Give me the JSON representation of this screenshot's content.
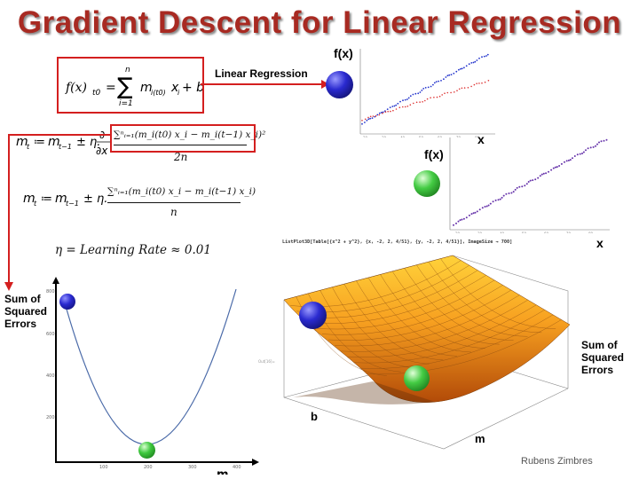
{
  "title": "Gradient Descent for Linear Regression",
  "model_formula": {
    "lhs": "f(x)",
    "lhs_sub": "t0",
    "sum_upper": "n",
    "sum_lower": "i=1",
    "term": "m",
    "term_sub": "i(t0)",
    "var": "x",
    "var_sub": "i",
    "tail": "+ b"
  },
  "linear_regression_label": "Linear Regression",
  "update_rule_1": {
    "lhs": "m",
    "lhs_sub": "t",
    "assign": "≔",
    "prev": "m",
    "prev_sub": "t−1",
    "pm": "± η.",
    "partial_top": "∂",
    "partial_bottom": "∂x",
    "numerator": "∑ⁿᵢ₌₁(m_i(t0) x_i − m_i(t−1) x_i)²",
    "denominator": "2n"
  },
  "update_rule_2": {
    "lhs": "m",
    "lhs_sub": "t",
    "assign": "≔",
    "prev": "m",
    "prev_sub": "t−1",
    "pm": "± η.",
    "numerator": "∑ⁿᵢ₌₁(m_i(t0) x_i − m_i(t−1) x_i)",
    "denominator": "n"
  },
  "learning_rate": "η = Learning Rate ≈ 0.01",
  "sse_label": {
    "line1": "Sum of",
    "line2": "Squared",
    "line3": "Errors"
  },
  "mathematica_code": "ListPlot3D[Table[{x^2 + y^2}, {x, -2, 2, 4/51}, {y, -2, 2, 4/51}], ImageSize → 700]",
  "plot_top": {
    "ylabel": "f(x)",
    "xlabel": "x",
    "xticks": [
      "20",
      "30",
      "40",
      "50",
      "60",
      "70",
      "80"
    ],
    "yticks": [
      "60",
      "80",
      "100",
      "120",
      "140"
    ]
  },
  "plot_mid": {
    "ylabel": "f(x)",
    "xlabel": "x",
    "xticks": [
      "20",
      "30",
      "40",
      "50",
      "60",
      "70",
      "80"
    ],
    "yticks": [
      "60",
      "80",
      "100",
      "120",
      "140"
    ]
  },
  "parabola_plot": {
    "xlabel": "m",
    "xticks": [
      "100",
      "200",
      "300",
      "400"
    ],
    "yticks": [
      "200",
      "400",
      "600",
      "800"
    ]
  },
  "surface_plot": {
    "axis_b": "b",
    "axis_m": "m",
    "zlabel": {
      "line1": "Sum of",
      "line2": "Squared",
      "line3": "Errors"
    }
  },
  "author": "Rubens Zimbres",
  "colors": {
    "title": "#a82a22",
    "box_red": "#d41f1f",
    "ball_blue": "#1a1aa8",
    "ball_green": "#2fb82f",
    "curve": "#4a6aa8"
  }
}
